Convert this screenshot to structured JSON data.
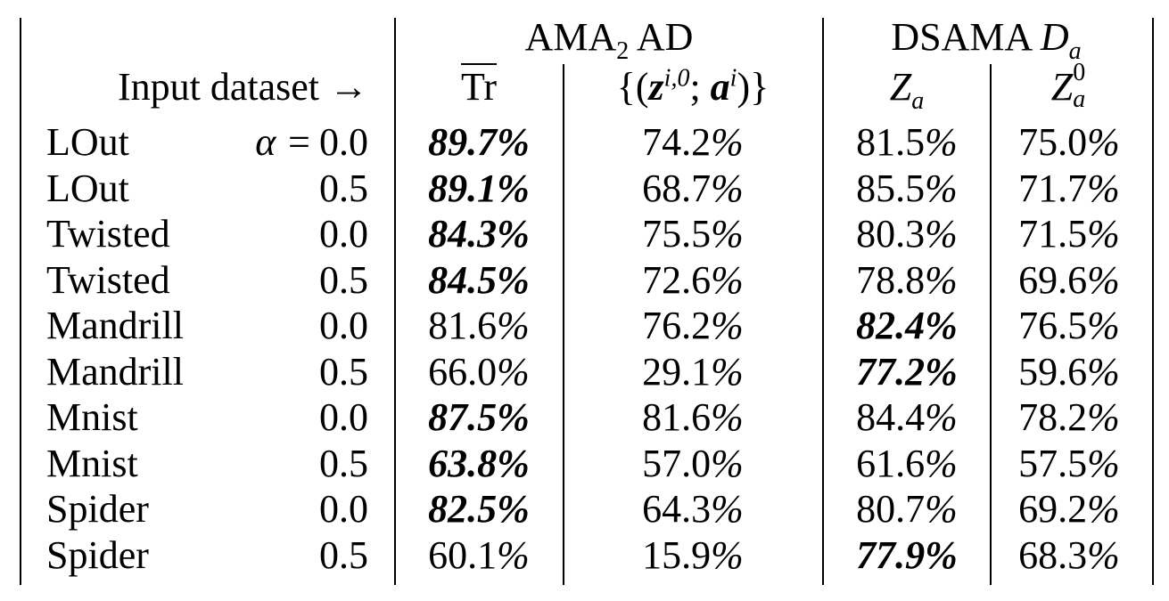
{
  "header": {
    "group1_main": "AMA",
    "group1_sub": "2",
    "group1_rest": " AD",
    "group2_main": "DSAMA ",
    "group2_var": "D",
    "group2_sub": "a",
    "row_label": "Input dataset →",
    "col_tr": "Tr",
    "col_z_open": "{(",
    "col_z_var": "z",
    "col_z_sup": "i,0",
    "col_z_sep": "; ",
    "col_a_var": "a",
    "col_a_sup": "i",
    "col_z_close": ")}",
    "col_za_var": "Z",
    "col_za_sub": "a",
    "col_za0_var": "Z",
    "col_za0_sup": "0",
    "col_za0_sub": "a"
  },
  "alpha_prefix": "α =",
  "rows": [
    {
      "dataset": "LOut",
      "alpha": "0.0",
      "tr": "89.7%",
      "z": "74.2%",
      "za": "81.5%",
      "za0": "75.0%",
      "bold": "tr"
    },
    {
      "dataset": "LOut",
      "alpha": "0.5",
      "tr": "89.1%",
      "z": "68.7%",
      "za": "85.5%",
      "za0": "71.7%",
      "bold": "tr"
    },
    {
      "dataset": "Twisted",
      "alpha": "0.0",
      "tr": "84.3%",
      "z": "75.5%",
      "za": "80.3%",
      "za0": "71.5%",
      "bold": "tr"
    },
    {
      "dataset": "Twisted",
      "alpha": "0.5",
      "tr": "84.5%",
      "z": "72.6%",
      "za": "78.8%",
      "za0": "69.6%",
      "bold": "tr"
    },
    {
      "dataset": "Mandrill",
      "alpha": "0.0",
      "tr": "81.6%",
      "z": "76.2%",
      "za": "82.4%",
      "za0": "76.5%",
      "bold": "za"
    },
    {
      "dataset": "Mandrill",
      "alpha": "0.5",
      "tr": "66.0%",
      "z": "29.1%",
      "za": "77.2%",
      "za0": "59.6%",
      "bold": "za"
    },
    {
      "dataset": "Mnist",
      "alpha": "0.0",
      "tr": "87.5%",
      "z": "81.6%",
      "za": "84.4%",
      "za0": "78.2%",
      "bold": "tr"
    },
    {
      "dataset": "Mnist",
      "alpha": "0.5",
      "tr": "63.8%",
      "z": "57.0%",
      "za": "61.6%",
      "za0": "57.5%",
      "bold": "tr"
    },
    {
      "dataset": "Spider",
      "alpha": "0.0",
      "tr": "82.5%",
      "z": "64.3%",
      "za": "80.7%",
      "za0": "69.2%",
      "bold": "tr"
    },
    {
      "dataset": "Spider",
      "alpha": "0.5",
      "tr": "60.1%",
      "z": "15.9%",
      "za": "77.9%",
      "za0": "68.3%",
      "bold": "za"
    }
  ]
}
